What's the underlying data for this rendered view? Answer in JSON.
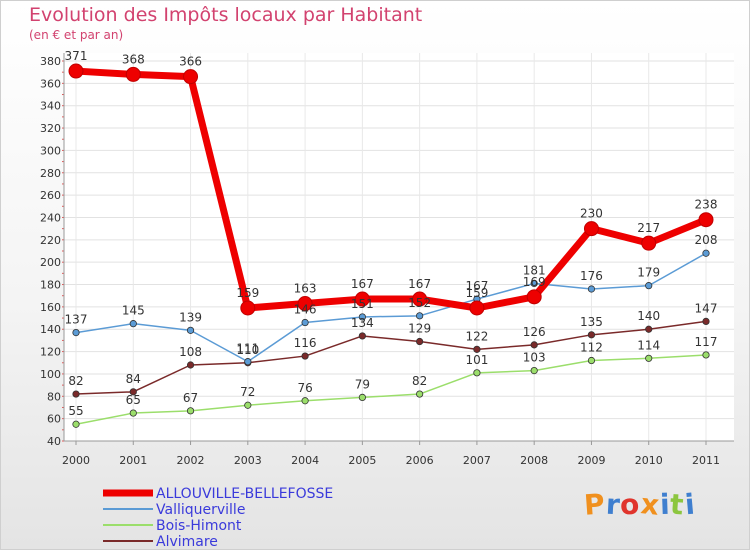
{
  "title": "Evolution des Impôts locaux par Habitant",
  "subtitle": "(en € et par an)",
  "brand": {
    "text": "Proxiti",
    "letters": [
      "P",
      "r",
      "o",
      "x",
      "i",
      "t",
      "i"
    ],
    "colors": [
      "#f0901e",
      "#3f7fcf",
      "#e0342c",
      "#f0901e",
      "#3f7fcf",
      "#8cc63f",
      "#3f7fcf"
    ]
  },
  "chart_data": {
    "type": "line",
    "title": "Evolution des Impôts locaux par Habitant",
    "subtitle": "(en € et par an)",
    "xlabel": "",
    "ylabel": "",
    "ylim": [
      40,
      380
    ],
    "yticks": [
      40,
      60,
      80,
      100,
      120,
      140,
      160,
      180,
      200,
      220,
      240,
      260,
      280,
      300,
      320,
      340,
      360,
      380
    ],
    "grid": true,
    "legend": "bottom-left",
    "categories": [
      "2000",
      "2001",
      "2002",
      "2003",
      "2004",
      "2005",
      "2006",
      "2007",
      "2008",
      "2009",
      "2010",
      "2011"
    ],
    "series": [
      {
        "name": "ALLOUVILLE-BELLEFOSSE",
        "color": "#ee0000",
        "values": [
          371,
          368,
          366,
          159,
          163,
          167,
          167,
          159,
          169,
          230,
          217,
          238
        ],
        "labels": [
          "371",
          "368",
          "366",
          "159",
          "163",
          "167",
          "167",
          "159",
          "169",
          "230",
          "217",
          "238"
        ]
      },
      {
        "name": "Valliquerville",
        "color": "#5b9bd5",
        "values": [
          137,
          145,
          139,
          111,
          146,
          151,
          152,
          167,
          181,
          176,
          179,
          208
        ],
        "labels": [
          "137",
          "145",
          "139",
          "111",
          "146",
          "151",
          "152",
          "167",
          "181",
          "176",
          "179",
          "208"
        ]
      },
      {
        "name": "Bois-Himont",
        "color": "#9bde6b",
        "values": [
          55,
          65,
          67,
          72,
          76,
          79,
          82,
          101,
          103,
          112,
          114,
          117
        ],
        "labels": [
          "55",
          "65",
          "67",
          "72",
          "76",
          "79",
          "82",
          "101",
          "103",
          "112",
          "114",
          "117"
        ]
      },
      {
        "name": "Alvimare",
        "color": "#7a2a2a",
        "values": [
          82,
          84,
          108,
          110,
          116,
          134,
          129,
          122,
          126,
          135,
          140,
          147
        ],
        "labels": [
          "82",
          "84",
          "108",
          "110",
          "116",
          "134",
          "129",
          "122",
          "126",
          "135",
          "140",
          "147"
        ]
      }
    ]
  }
}
